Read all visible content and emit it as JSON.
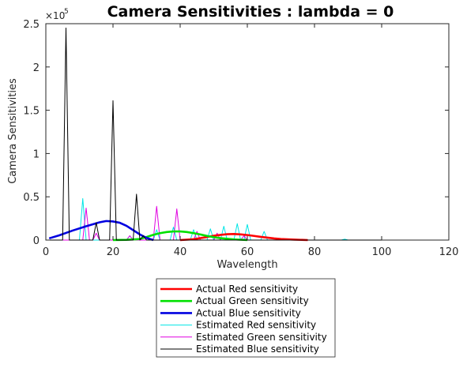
{
  "chart_data": {
    "type": "line",
    "title": "Camera Sensitivities : lambda = 0",
    "xlabel": "Wavelength",
    "ylabel": "Camera Sensitivities",
    "xlim": [
      0,
      120
    ],
    "ylim": [
      0,
      250000
    ],
    "xticks": [
      0,
      20,
      40,
      60,
      80,
      100,
      120
    ],
    "yticks": [
      0,
      50000,
      100000,
      150000,
      200000,
      250000
    ],
    "xtick_labels": [
      "0",
      "20",
      "40",
      "60",
      "80",
      "100",
      "120"
    ],
    "ytick_labels": [
      "0",
      "0.5",
      "1",
      "1.5",
      "2",
      "2.5"
    ],
    "y_exponent_base": "×10",
    "y_exponent_power": "5",
    "grid": false,
    "legend_position": "below",
    "series": [
      {
        "name": "Actual Red sensitivity",
        "color": "#ff0000",
        "style": "thick",
        "x": [
          40,
          44,
          48,
          50,
          52,
          54,
          56,
          58,
          60,
          62,
          64,
          66,
          68,
          70,
          74,
          78
        ],
        "y": [
          0,
          1000,
          3500,
          5000,
          6000,
          6800,
          7000,
          6600,
          5800,
          4800,
          3700,
          2800,
          1900,
          1200,
          500,
          0
        ]
      },
      {
        "name": "Actual Green sensitivity",
        "color": "#00e000",
        "style": "thick",
        "x": [
          20,
          24,
          28,
          30,
          32,
          34,
          36,
          38,
          40,
          42,
          44,
          46,
          48,
          50,
          52,
          56,
          60
        ],
        "y": [
          0,
          300,
          1200,
          3500,
          6000,
          8000,
          9300,
          10000,
          10000,
          9300,
          8000,
          6500,
          4800,
          3300,
          2200,
          800,
          0
        ]
      },
      {
        "name": "Actual Blue sensitivity",
        "color": "#0000e0",
        "style": "thick",
        "x": [
          1,
          4,
          8,
          12,
          16,
          18,
          20,
          22,
          24,
          26,
          28,
          30,
          32
        ],
        "y": [
          2000,
          5500,
          11000,
          16000,
          20500,
          22000,
          21500,
          20000,
          16500,
          11500,
          6500,
          2500,
          0
        ]
      },
      {
        "name": "Estimated Red sensitivity",
        "color": "#00e5e5",
        "style": "thin",
        "x": [
          1,
          10,
          11,
          12,
          24,
          25,
          26,
          30,
          32,
          33,
          34,
          37,
          38,
          39,
          43,
          44,
          45,
          48,
          49,
          50,
          52,
          53,
          54,
          56,
          57,
          58,
          59,
          60,
          61,
          62,
          64,
          65,
          66,
          68,
          72,
          88,
          89,
          90,
          100
        ],
        "y": [
          0,
          0,
          48000,
          0,
          0,
          5000,
          0,
          0,
          0,
          12000,
          0,
          0,
          15000,
          0,
          0,
          12000,
          0,
          0,
          13000,
          0,
          0,
          16000,
          0,
          0,
          19000,
          0,
          0,
          18000,
          0,
          0,
          0,
          10000,
          0,
          0,
          0,
          0,
          1000,
          0,
          0
        ]
      },
      {
        "name": "Estimated Green sensitivity",
        "color": "#e000e0",
        "style": "thin",
        "x": [
          1,
          11,
          12,
          13,
          14,
          15,
          16,
          24,
          25,
          26,
          32,
          33,
          34,
          38,
          39,
          40,
          44,
          45,
          46,
          50,
          51,
          52,
          58,
          59,
          60,
          100
        ],
        "y": [
          0,
          0,
          37000,
          0,
          0,
          8000,
          0,
          0,
          5000,
          0,
          0,
          39000,
          0,
          0,
          36000,
          0,
          0,
          10000,
          0,
          0,
          8000,
          0,
          0,
          5000,
          0,
          0
        ]
      },
      {
        "name": "Estimated Blue sensitivity",
        "color": "#000000",
        "style": "thin",
        "x": [
          1,
          5,
          6,
          7,
          14,
          15,
          16,
          19,
          20,
          21,
          26,
          27,
          28,
          29,
          30,
          31,
          60,
          100
        ],
        "y": [
          0,
          0,
          245000,
          0,
          0,
          20000,
          0,
          0,
          161000,
          0,
          0,
          53000,
          0,
          5000,
          0,
          0,
          0,
          0
        ]
      }
    ]
  }
}
